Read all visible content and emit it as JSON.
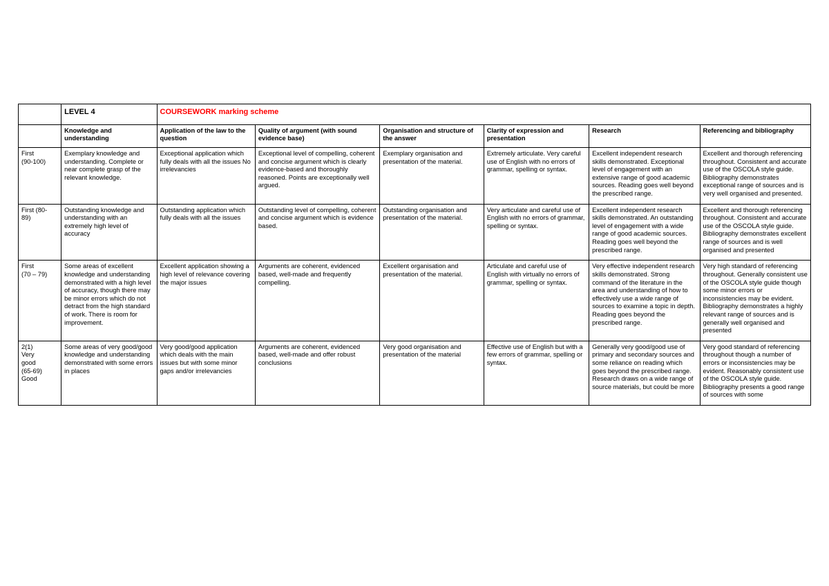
{
  "title": {
    "level": "LEVEL 4",
    "scheme": "COURSEWORK marking scheme"
  },
  "columns": [
    "Knowledge and understanding",
    "Application of the law  to the question",
    "Quality of argument (with sound evidence base)",
    "Organisation and structure of the answer",
    "Clarity of expression and presentation",
    "Research",
    "Referencing and bibliography"
  ],
  "rows": [
    {
      "grade": [
        "First",
        "(90-100)"
      ],
      "cells": [
        "Exemplary knowledge and understanding. Complete or near complete grasp of the relevant knowledge.",
        "Exceptional application which fully deals with all the issues No irrelevancies",
        "Exceptional level of compelling, coherent and concise argument which is clearly evidence-based and thoroughly reasoned. Points are exceptionally well argued.",
        "Exemplary organisation and presentation of the material.",
        "Extremely articulate. Very careful use of English with no errors of grammar, spelling or syntax.",
        "Excellent independent research skills demonstrated. Exceptional level of engagement with an extensive range of good academic sources. Reading goes well beyond the prescribed range.",
        "Excellent and thorough referencing throughout. Consistent and accurate use of the OSCOLA style guide. Bibliography demonstrates exceptional range of sources and is very well organised and presented."
      ]
    },
    {
      "grade": [
        "First (80-",
        "89)"
      ],
      "cells": [
        "Outstanding knowledge and understanding with an extremely high level of accuracy",
        "Outstanding application  which fully deals with all the  issues",
        "Outstanding level of compelling, coherent and concise argument which is evidence based.",
        "Outstanding organisation and presentation of the material.",
        "Very articulate and careful use of English with no errors of grammar, spelling or syntax.",
        "Excellent independent research skills demonstrated. An outstanding level of engagement with a wide range of good academic sources. Reading goes well beyond the prescribed range.",
        "Excellent and thorough referencing throughout. Consistent and accurate use of the OSCOLA style guide. Bibliography demonstrates excellent range of sources and  is well organised and presented"
      ]
    },
    {
      "grade": [
        "First",
        "(70 – 79)"
      ],
      "cells": [
        "Some areas of excellent knowledge and understanding demonstrated with a high level of accuracy, though there may be minor errors which do not detract from the high standard of work. There is room for improvement.",
        "Excellent application showing a high level of relevance covering the major issues",
        "Arguments are coherent, evidenced based, well-made and frequently compelling.",
        "Excellent organisation and presentation of the material.",
        "Articulate and careful use of English with virtually no errors of grammar, spelling or syntax.",
        "Very effective independent research skills demonstrated. Strong command of the literature in the area and understanding of how to effectively use a wide range of sources to examine a topic in depth. Reading goes beyond the prescribed range.",
        "Very high standard of referencing throughout. Generally consistent use of the OSCOLA style guide though some minor errors or inconsistencies may be evident. Bibliography demonstrates a highly relevant  range of sources and  is generally well organised and presented"
      ]
    },
    {
      "grade": [
        "2(1)",
        "",
        "Very",
        "good",
        "(65-69)",
        "",
        "Good"
      ],
      "cells": [
        "Some areas of very good/good knowledge and understanding demonstrated with some errors in places",
        "Very good/good application which deals with the main issues but with some minor gaps and/or irrelevancies",
        "Arguments are coherent, evidenced based, well-made and offer robust conclusions",
        "Very good organisation and presentation of the material",
        "Effective use of English but with a few errors of grammar, spelling or syntax.",
        "Generally very good/good use of primary and secondary sources and some reliance on reading which goes beyond the prescribed range. Research draws on a wide range of source materials, but could be more",
        "Very good standard of referencing throughout though a number of errors or inconsistencies may be evident. Reasonably consistent use of the OSCOLA style guide. Bibliography presents a good range of sources with some"
      ]
    }
  ]
}
